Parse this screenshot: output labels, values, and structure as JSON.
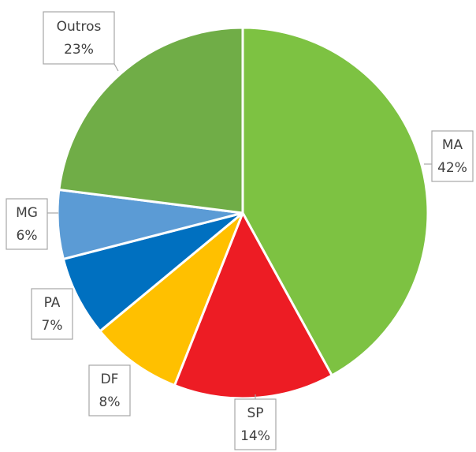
{
  "chart_data": {
    "type": "pie",
    "categories": [
      "MA",
      "SP",
      "DF",
      "PA",
      "MG",
      "Outros"
    ],
    "values": [
      42,
      14,
      8,
      7,
      6,
      23
    ],
    "value_labels": [
      "42%",
      "14%",
      "8%",
      "7%",
      "6%",
      "23%"
    ],
    "colors": [
      "#7dc242",
      "#ed1c24",
      "#ffc000",
      "#0070c0",
      "#5b9bd5",
      "#70ad47"
    ]
  }
}
